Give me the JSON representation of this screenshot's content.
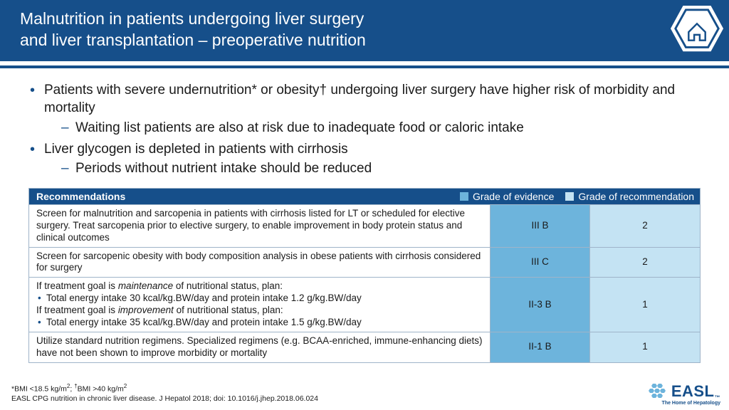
{
  "colors": {
    "brand": "#164f8a",
    "evidence_bg": "#6db4dc",
    "recommendation_bg": "#c4e3f3",
    "border": "#9fb4c9",
    "text": "#1a1a1a",
    "white": "#ffffff"
  },
  "header": {
    "title_line1": "Malnutrition in patients undergoing liver surgery",
    "title_line2": "and liver transplantation – preoperative nutrition"
  },
  "bullets": [
    {
      "text": "Patients with severe undernutrition* or obesity† undergoing liver surgery have higher risk of morbidity and mortality",
      "sub": [
        "Waiting list patients are also at risk due to inadequate food or caloric intake"
      ]
    },
    {
      "text": "Liver glycogen is depleted in patients with cirrhosis",
      "sub": [
        "Periods without nutrient intake should be reduced"
      ]
    }
  ],
  "table": {
    "header": {
      "recommendations": "Recommendations",
      "evidence": "Grade of evidence",
      "grade": "Grade of recommendation"
    },
    "rows": [
      {
        "rec_html": "Screen for malnutrition and sarcopenia in patients with cirrhosis listed for LT or scheduled for elective surgery. Treat sarcopenia prior to elective surgery, to enable improvement in body protein status and clinical outcomes",
        "evidence": "III B",
        "grade": "2"
      },
      {
        "rec_html": "Screen for sarcopenic obesity with body composition analysis in obese patients with cirrhosis considered for surgery",
        "evidence": "III C",
        "grade": "2"
      },
      {
        "rec_html": "If treatment goal is <em>maintenance</em> of nutritional status, plan:<div class=\"inner-bullet\">Total energy intake 30 kcal/kg.BW/day and protein intake 1.2 g/kg.BW/day</div>If treatment goal is <em>improvement</em> of nutritional status, plan:<div class=\"inner-bullet\">Total energy intake 35 kcal/kg.BW/day and protein intake 1.5 g/kg.BW/day</div>",
        "evidence": "II-3 B",
        "grade": "1"
      },
      {
        "rec_html": "Utilize standard nutrition regimens. Specialized regimens (e.g. BCAA-enriched, immune-enhancing diets) have not been shown to improve morbidity or mortality",
        "evidence": "II-1 B",
        "grade": "1"
      }
    ]
  },
  "footnote": {
    "line1": "*BMI <18.5 kg/m²; †BMI >40 kg/m²",
    "line2": "EASL CPG nutrition in chronic liver disease. J Hepatol 2018; doi: 10.1016/j.jhep.2018.06.024"
  },
  "logo": {
    "name": "EASL",
    "tm": "™",
    "tagline": "The Home of Hepatology"
  }
}
